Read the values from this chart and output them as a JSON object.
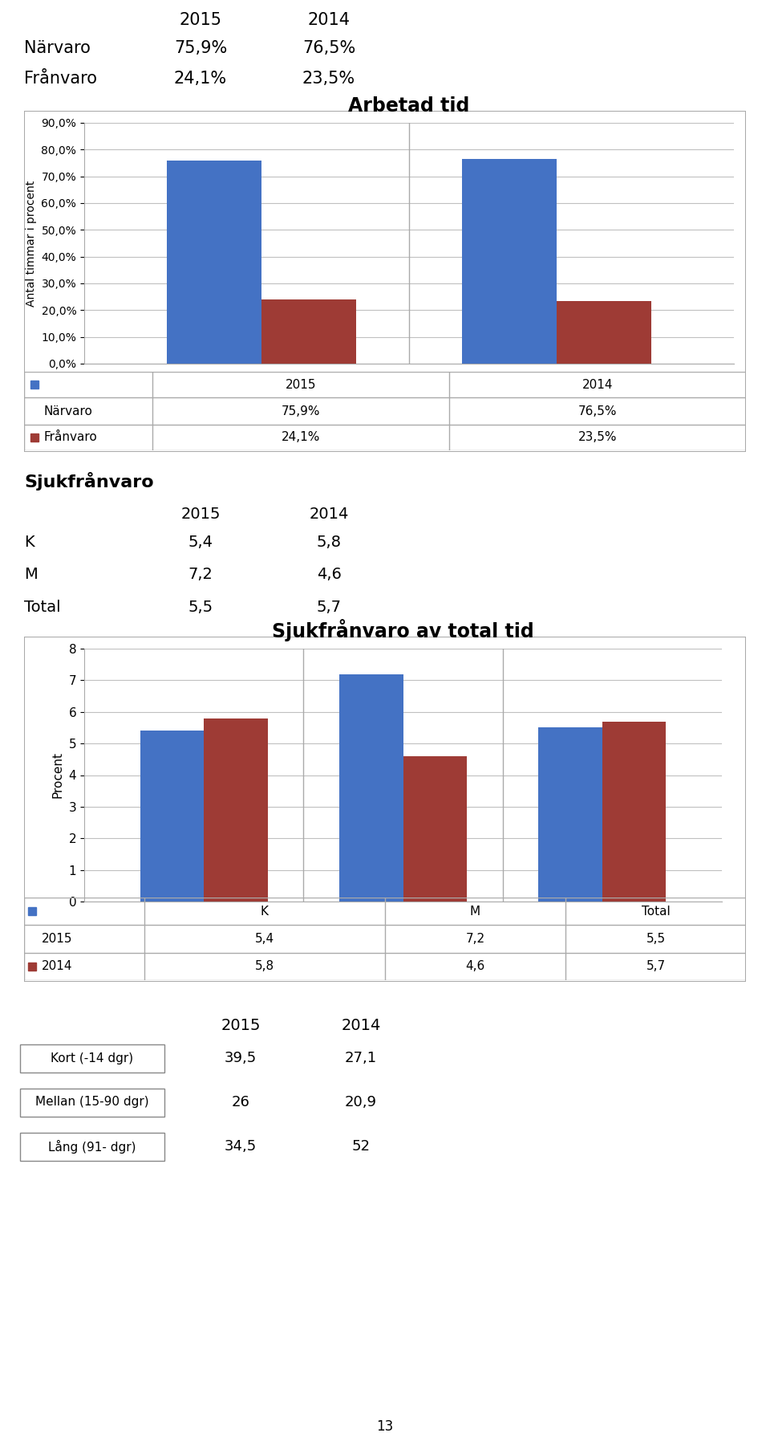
{
  "title_text": {
    "narvaro_label": "Närvaro",
    "narvaro_2015": "75,9%",
    "narvaro_2014": "76,5%",
    "franvaro_label": "Frånvaro",
    "franvaro_2015": "24,1%",
    "franvaro_2014": "23,5%"
  },
  "chart1": {
    "title": "Arbetad tid",
    "ylabel": "Antal timmar i procent",
    "narvaro_values": [
      75.9,
      76.5
    ],
    "franvaro_values": [
      24.1,
      23.5
    ],
    "yticks": [
      0,
      10,
      20,
      30,
      40,
      50,
      60,
      70,
      80,
      90
    ],
    "ytick_labels": [
      "0,0%",
      "10,0%",
      "20,0%",
      "30,0%",
      "40,0%",
      "50,0%",
      "60,0%",
      "70,0%",
      "80,0%",
      "90,0%"
    ],
    "bar_color_blue": "#4472C4",
    "bar_color_red": "#9E3B35"
  },
  "sjuk_section": {
    "header": "Sjukfrånvaro",
    "K_label": "K",
    "K_2015": "5,4",
    "K_2014": "5,8",
    "M_label": "M",
    "M_2015": "7,2",
    "M_2014": "4,6",
    "Total_label": "Total",
    "Total_2015": "5,5",
    "Total_2014": "5,7"
  },
  "chart2": {
    "title": "Sjukfrånvaro av total tid",
    "ylabel": "Procent",
    "categories": [
      "K",
      "M",
      "Total"
    ],
    "values_2015": [
      5.4,
      7.2,
      5.5
    ],
    "values_2014": [
      5.8,
      4.6,
      5.7
    ],
    "yticks": [
      0,
      1,
      2,
      3,
      4,
      5,
      6,
      7,
      8
    ],
    "bar_color_blue": "#4472C4",
    "bar_color_red": "#9E3B35"
  },
  "bottom_section": {
    "rows": [
      "Kort (-14 dgr)",
      "Mellan (15-90 dgr)",
      "Lång (91- dgr)"
    ],
    "values_2015": [
      "39,5",
      "26",
      "34,5"
    ],
    "values_2014": [
      "27,1",
      "20,9",
      "52"
    ],
    "page_number": "13"
  },
  "bg_color": "#ffffff",
  "grid_color": "#c0c0c0"
}
